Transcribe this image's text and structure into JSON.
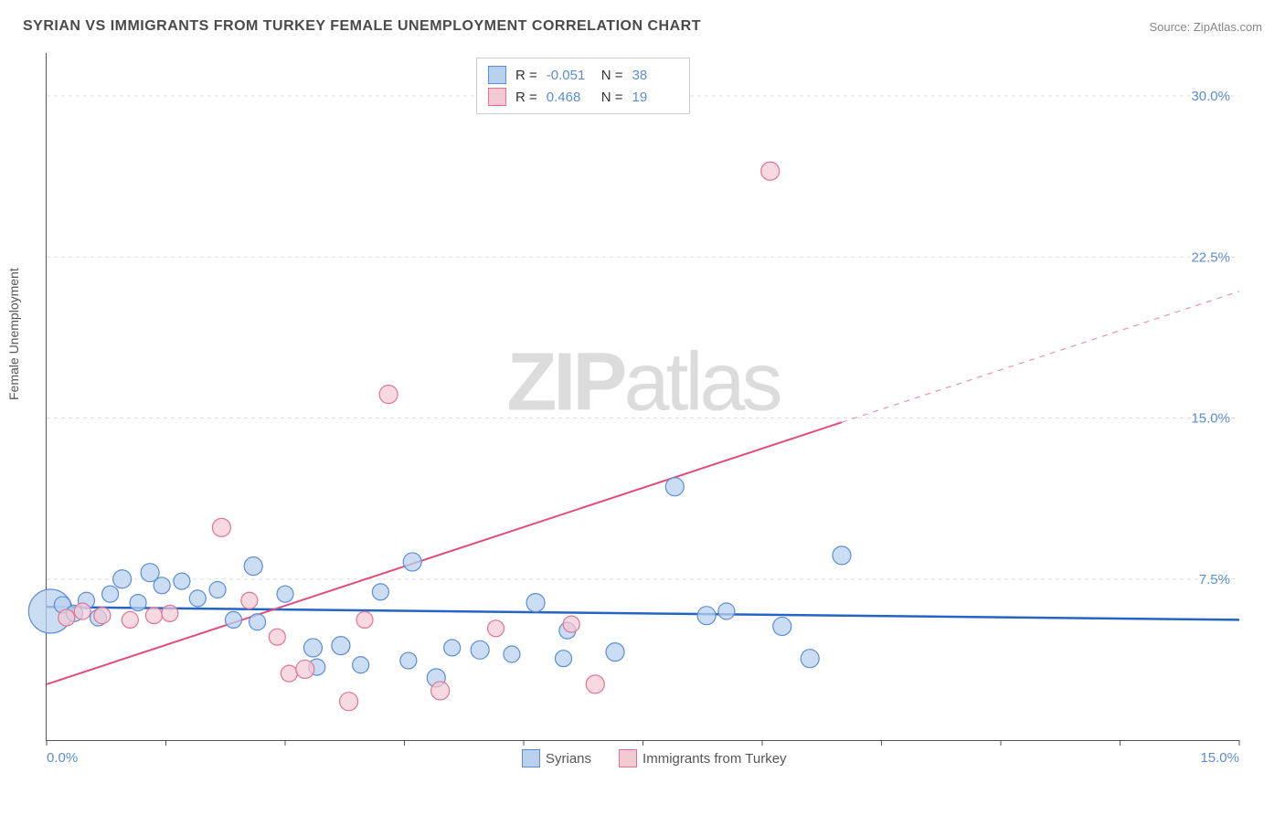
{
  "title": "SYRIAN VS IMMIGRANTS FROM TURKEY FEMALE UNEMPLOYMENT CORRELATION CHART",
  "source": "Source: ZipAtlas.com",
  "y_axis_label": "Female Unemployment",
  "watermark_bold": "ZIP",
  "watermark_light": "atlas",
  "chart": {
    "type": "scatter",
    "xlim": [
      0,
      15
    ],
    "ylim": [
      0,
      32
    ],
    "x_ticks": [
      0,
      1.5,
      3.0,
      4.5,
      6.0,
      7.5,
      9.0,
      10.5,
      12.0,
      13.5,
      15.0
    ],
    "x_tick_labels": {
      "0": "0.0%",
      "15": "15.0%"
    },
    "y_ticks": [
      7.5,
      15.0,
      22.5,
      30.0
    ],
    "y_tick_labels": [
      "7.5%",
      "15.0%",
      "22.5%",
      "30.0%"
    ],
    "background_color": "#ffffff",
    "grid_color": "#dddddd",
    "axis_color": "#555555",
    "value_text_color": "#5b8dd6",
    "label_text_color": "#555555",
    "title_font_size": 16,
    "tick_font_size": 15
  },
  "series": [
    {
      "name": "Syrians",
      "fill_color": "#b9d1ee",
      "stroke_color": "#5b8dd6",
      "marker_radius": 10,
      "marker_opacity": 0.75,
      "correlation": {
        "r": "-0.051",
        "n": "38"
      },
      "regression": {
        "x1": 0,
        "y1": 6.2,
        "x2": 15,
        "y2": 5.6,
        "stroke": "#2464c2",
        "width": 2.5,
        "solid_to": 15
      },
      "points": [
        {
          "x": 0.05,
          "y": 6.0,
          "r": 24
        },
        {
          "x": 0.2,
          "y": 6.3,
          "r": 9
        },
        {
          "x": 0.35,
          "y": 5.9,
          "r": 9
        },
        {
          "x": 0.5,
          "y": 6.5,
          "r": 9
        },
        {
          "x": 0.65,
          "y": 5.7,
          "r": 9
        },
        {
          "x": 0.8,
          "y": 6.8,
          "r": 9
        },
        {
          "x": 0.95,
          "y": 7.5,
          "r": 10
        },
        {
          "x": 1.15,
          "y": 6.4,
          "r": 9
        },
        {
          "x": 1.3,
          "y": 7.8,
          "r": 10
        },
        {
          "x": 1.45,
          "y": 7.2,
          "r": 9
        },
        {
          "x": 1.7,
          "y": 7.4,
          "r": 9
        },
        {
          "x": 1.9,
          "y": 6.6,
          "r": 9
        },
        {
          "x": 2.15,
          "y": 7.0,
          "r": 9
        },
        {
          "x": 2.35,
          "y": 5.6,
          "r": 9
        },
        {
          "x": 2.6,
          "y": 8.1,
          "r": 10
        },
        {
          "x": 2.65,
          "y": 5.5,
          "r": 9
        },
        {
          "x": 3.0,
          "y": 6.8,
          "r": 9
        },
        {
          "x": 3.35,
          "y": 4.3,
          "r": 10
        },
        {
          "x": 3.4,
          "y": 3.4,
          "r": 9
        },
        {
          "x": 3.7,
          "y": 4.4,
          "r": 10
        },
        {
          "x": 3.95,
          "y": 3.5,
          "r": 9
        },
        {
          "x": 4.2,
          "y": 6.9,
          "r": 9
        },
        {
          "x": 4.55,
          "y": 3.7,
          "r": 9
        },
        {
          "x": 4.6,
          "y": 8.3,
          "r": 10
        },
        {
          "x": 4.9,
          "y": 2.9,
          "r": 10
        },
        {
          "x": 5.1,
          "y": 4.3,
          "r": 9
        },
        {
          "x": 5.45,
          "y": 4.2,
          "r": 10
        },
        {
          "x": 5.85,
          "y": 4.0,
          "r": 9
        },
        {
          "x": 6.15,
          "y": 6.4,
          "r": 10
        },
        {
          "x": 6.5,
          "y": 3.8,
          "r": 9
        },
        {
          "x": 6.55,
          "y": 5.1,
          "r": 9
        },
        {
          "x": 7.15,
          "y": 4.1,
          "r": 10
        },
        {
          "x": 7.9,
          "y": 11.8,
          "r": 10
        },
        {
          "x": 8.3,
          "y": 5.8,
          "r": 10
        },
        {
          "x": 8.55,
          "y": 6.0,
          "r": 9
        },
        {
          "x": 9.25,
          "y": 5.3,
          "r": 10
        },
        {
          "x": 9.6,
          "y": 3.8,
          "r": 10
        },
        {
          "x": 10.0,
          "y": 8.6,
          "r": 10
        }
      ]
    },
    {
      "name": "Immigrants from Turkey",
      "fill_color": "#f3c9d4",
      "stroke_color": "#e47393",
      "marker_radius": 10,
      "marker_opacity": 0.7,
      "correlation": {
        "r": "0.468",
        "n": "19"
      },
      "regression": {
        "x1": 0,
        "y1": 2.6,
        "x2": 15,
        "y2": 20.9,
        "stroke": "#e04d78",
        "width": 2,
        "solid_to": 10
      },
      "points": [
        {
          "x": 0.25,
          "y": 5.7,
          "r": 9
        },
        {
          "x": 0.45,
          "y": 6.0,
          "r": 9
        },
        {
          "x": 0.7,
          "y": 5.8,
          "r": 9
        },
        {
          "x": 1.05,
          "y": 5.6,
          "r": 9
        },
        {
          "x": 1.35,
          "y": 5.8,
          "r": 9
        },
        {
          "x": 1.55,
          "y": 5.9,
          "r": 9
        },
        {
          "x": 2.2,
          "y": 9.9,
          "r": 10
        },
        {
          "x": 2.55,
          "y": 6.5,
          "r": 9
        },
        {
          "x": 2.9,
          "y": 4.8,
          "r": 9
        },
        {
          "x": 3.05,
          "y": 3.1,
          "r": 9
        },
        {
          "x": 3.25,
          "y": 3.3,
          "r": 10
        },
        {
          "x": 3.8,
          "y": 1.8,
          "r": 10
        },
        {
          "x": 4.0,
          "y": 5.6,
          "r": 9
        },
        {
          "x": 4.3,
          "y": 16.1,
          "r": 10
        },
        {
          "x": 4.95,
          "y": 2.3,
          "r": 10
        },
        {
          "x": 5.65,
          "y": 5.2,
          "r": 9
        },
        {
          "x": 6.6,
          "y": 5.4,
          "r": 9
        },
        {
          "x": 6.9,
          "y": 2.6,
          "r": 10
        },
        {
          "x": 9.1,
          "y": 26.5,
          "r": 10
        }
      ]
    }
  ],
  "bottom_legend": [
    "Syrians",
    "Immigrants from Turkey"
  ]
}
